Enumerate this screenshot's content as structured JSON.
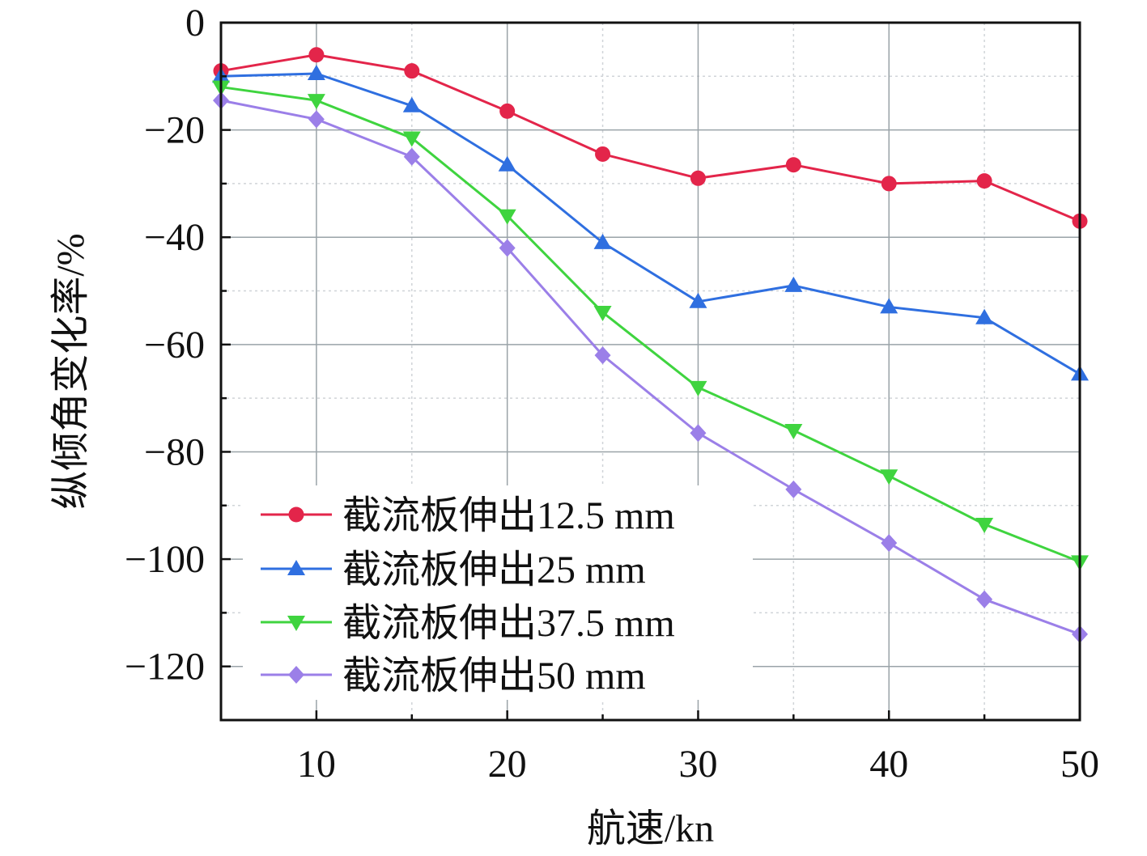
{
  "chart_data": {
    "type": "line",
    "title": "",
    "xlabel": "航速/kn",
    "ylabel": "纵倾角变化率/%",
    "xlim": [
      5,
      50
    ],
    "ylim": [
      -130,
      0
    ],
    "xticks": [
      10,
      20,
      30,
      40,
      50
    ],
    "xtick_labels": [
      "10",
      "20",
      "30",
      "40",
      "50"
    ],
    "yticks": [
      0,
      -20,
      -40,
      -60,
      -80,
      -100,
      -120
    ],
    "ytick_labels": [
      "0",
      "−20",
      "−40",
      "−60",
      "−80",
      "−100",
      "−120"
    ],
    "grid": true,
    "legend_position": "bottom-left",
    "x": [
      5,
      10,
      15,
      20,
      25,
      30,
      35,
      40,
      45,
      50
    ],
    "series": [
      {
        "name": "截流板伸出12.5 mm",
        "color": "#e3254a",
        "marker": "circle",
        "values": [
          -9,
          -6,
          -9,
          -16.5,
          -24.5,
          -29,
          -26.5,
          -30,
          -29.5,
          -37
        ]
      },
      {
        "name": "截流板伸出25 mm",
        "color": "#2f6fe0",
        "marker": "triangle-up",
        "values": [
          -10,
          -9.5,
          -15.5,
          -26.5,
          -41,
          -52,
          -49,
          -53,
          -55,
          -65.5
        ]
      },
      {
        "name": "截流板伸出37.5 mm",
        "color": "#3fd43f",
        "marker": "triangle-down",
        "values": [
          -12,
          -14.5,
          -21.5,
          -36,
          -54,
          -68,
          -76,
          -84.5,
          -93.5,
          -100.5
        ]
      },
      {
        "name": "截流板伸出50 mm",
        "color": "#9b7fe8",
        "marker": "diamond",
        "values": [
          -14.5,
          -18,
          -25,
          -42,
          -62,
          -76.5,
          -87,
          -97,
          -107.5,
          -114
        ]
      }
    ]
  }
}
